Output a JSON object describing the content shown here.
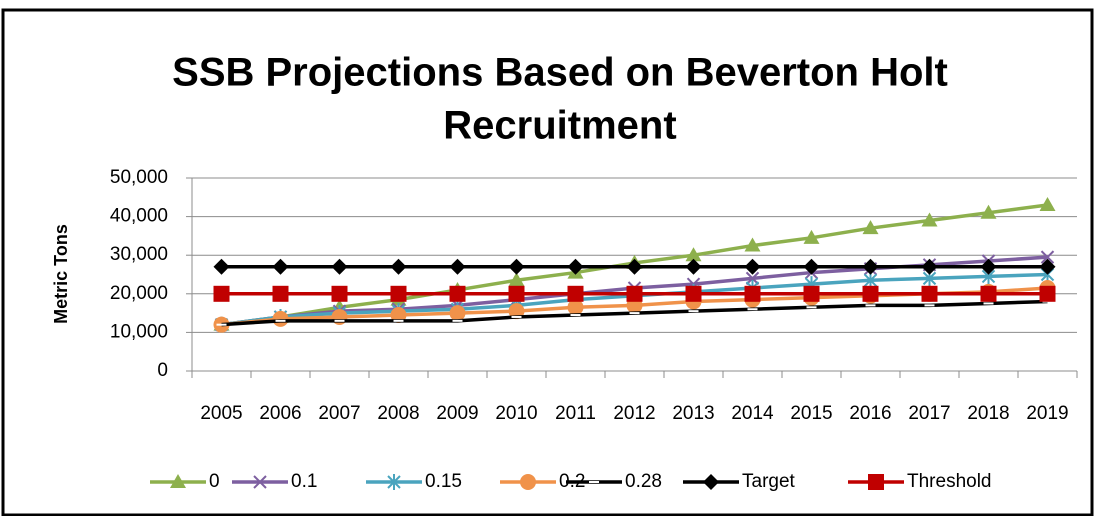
{
  "chart_data": {
    "type": "line",
    "title": [
      "SSB Projections Based on Beverton Holt",
      "Recruitment"
    ],
    "y_label": "Metric Tons",
    "categories": [
      "2005",
      "2006",
      "2007",
      "2008",
      "2009",
      "2010",
      "2011",
      "2012",
      "2013",
      "2014",
      "2015",
      "2016",
      "2017",
      "2018",
      "2019"
    ],
    "series": [
      {
        "name": "0",
        "color": "#8db04d",
        "marker": "triangle",
        "values": [
          12000,
          14000,
          16500,
          18500,
          21000,
          23500,
          25500,
          28000,
          30000,
          32500,
          34500,
          37000,
          39000,
          41000,
          43000
        ]
      },
      {
        "name": "0.1",
        "color": "#7d5fa0",
        "marker": "x",
        "values": [
          12000,
          14000,
          15500,
          16000,
          17000,
          18500,
          20000,
          21500,
          22500,
          24000,
          25500,
          26500,
          27500,
          28500,
          29500
        ]
      },
      {
        "name": "0.15",
        "color": "#4aa4be",
        "marker": "star",
        "values": [
          12000,
          14000,
          15000,
          15500,
          16000,
          17000,
          18500,
          19500,
          20500,
          21500,
          22500,
          23500,
          24000,
          24500,
          25000
        ]
      },
      {
        "name": "0.2",
        "color": "#f0924a",
        "marker": "circle",
        "values": [
          12000,
          13500,
          14000,
          14500,
          15000,
          15500,
          16500,
          17000,
          18000,
          18500,
          19000,
          19500,
          20000,
          20500,
          21500
        ]
      },
      {
        "name": "0.28",
        "color": "#000000",
        "marker": "dash",
        "values": [
          12000,
          13000,
          13000,
          13000,
          13000,
          14000,
          14500,
          15000,
          15500,
          16000,
          16500,
          17000,
          17000,
          17500,
          18000
        ]
      },
      {
        "name": "Target",
        "color": "#000000",
        "marker": "diamond",
        "values": [
          27000,
          27000,
          27000,
          27000,
          27000,
          27000,
          27000,
          27000,
          27000,
          27000,
          27000,
          27000,
          27000,
          27000,
          27000
        ]
      },
      {
        "name": "Threshold",
        "color": "#c00000",
        "marker": "square",
        "values": [
          20000,
          20000,
          20000,
          20000,
          20000,
          20000,
          20000,
          20000,
          20000,
          20000,
          20000,
          20000,
          20000,
          20000,
          20000
        ]
      }
    ],
    "ylim": [
      0,
      50000
    ],
    "yticks": [
      0,
      {
        "value": 10000,
        "label": "10,000"
      },
      {
        "value": 20000,
        "label": "20,000"
      },
      {
        "value": 30000,
        "label": "30,000"
      },
      {
        "value": 40000,
        "label": "40,000"
      },
      {
        "value": 50000,
        "label": "50,000"
      }
    ],
    "grid": true,
    "legend": "bottom"
  }
}
